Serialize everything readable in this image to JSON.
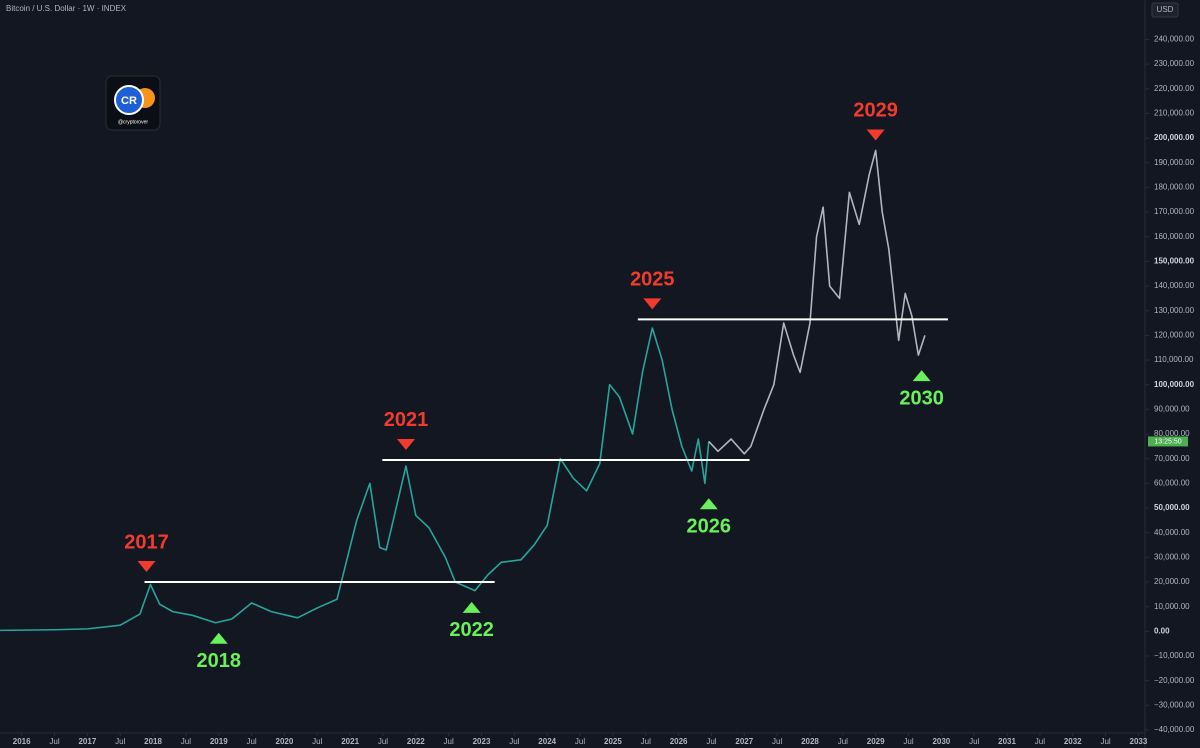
{
  "header": {
    "symbol": "Bitcoin / U.S. Dollar · 1W · INDEX",
    "currency": "USD"
  },
  "logo": {
    "mark": "CR",
    "handle": "@cryptorover"
  },
  "chart_data": {
    "type": "line",
    "xlim": [
      2015.67,
      2033.1
    ],
    "ylim": [
      -40000,
      256000
    ],
    "xticks": [
      {
        "value": 2016,
        "label": "2016"
      },
      {
        "value": 2016.5,
        "label": "Jul"
      },
      {
        "value": 2017,
        "label": "2017"
      },
      {
        "value": 2017.5,
        "label": "Jul"
      },
      {
        "value": 2018,
        "label": "2018"
      },
      {
        "value": 2018.5,
        "label": "Jul"
      },
      {
        "value": 2019,
        "label": "2019"
      },
      {
        "value": 2019.5,
        "label": "Jul"
      },
      {
        "value": 2020,
        "label": "2020"
      },
      {
        "value": 2020.5,
        "label": "Jul"
      },
      {
        "value": 2021,
        "label": "2021"
      },
      {
        "value": 2021.5,
        "label": "Jul"
      },
      {
        "value": 2022,
        "label": "2022"
      },
      {
        "value": 2022.5,
        "label": "Jul"
      },
      {
        "value": 2023,
        "label": "2023"
      },
      {
        "value": 2023.5,
        "label": "Jul"
      },
      {
        "value": 2024,
        "label": "2024"
      },
      {
        "value": 2024.5,
        "label": "Jul"
      },
      {
        "value": 2025,
        "label": "2025"
      },
      {
        "value": 2025.5,
        "label": "Jul"
      },
      {
        "value": 2026,
        "label": "2026"
      },
      {
        "value": 2026.5,
        "label": "Jul"
      },
      {
        "value": 2027,
        "label": "2027"
      },
      {
        "value": 2027.5,
        "label": "Jul"
      },
      {
        "value": 2028,
        "label": "2028"
      },
      {
        "value": 2028.5,
        "label": "Jul"
      },
      {
        "value": 2029,
        "label": "2029"
      },
      {
        "value": 2029.5,
        "label": "Jul"
      },
      {
        "value": 2030,
        "label": "2030"
      },
      {
        "value": 2030.5,
        "label": "Jul"
      },
      {
        "value": 2031,
        "label": "2031"
      },
      {
        "value": 2031.5,
        "label": "Jul"
      },
      {
        "value": 2032,
        "label": "2032"
      },
      {
        "value": 2032.5,
        "label": "Jul"
      },
      {
        "value": 2033,
        "label": "2033"
      }
    ],
    "yticks": [
      {
        "value": 240000,
        "label": "240,000.00"
      },
      {
        "value": 230000,
        "label": "230,000.00"
      },
      {
        "value": 220000,
        "label": "220,000.00"
      },
      {
        "value": 210000,
        "label": "210,000.00"
      },
      {
        "value": 200000,
        "label": "200,000.00"
      },
      {
        "value": 190000,
        "label": "190,000.00"
      },
      {
        "value": 180000,
        "label": "180,000.00"
      },
      {
        "value": 170000,
        "label": "170,000.00"
      },
      {
        "value": 160000,
        "label": "160,000.00"
      },
      {
        "value": 150000,
        "label": "150,000.00"
      },
      {
        "value": 140000,
        "label": "140,000.00"
      },
      {
        "value": 130000,
        "label": "130,000.00"
      },
      {
        "value": 120000,
        "label": "120,000.00"
      },
      {
        "value": 110000,
        "label": "110,000.00"
      },
      {
        "value": 100000,
        "label": "100,000.00"
      },
      {
        "value": 90000,
        "label": "90,000.00"
      },
      {
        "value": 80000,
        "label": "80,000.00"
      },
      {
        "value": 70000,
        "label": "70,000.00"
      },
      {
        "value": 60000,
        "label": "60,000.00"
      },
      {
        "value": 50000,
        "label": "50,000.00"
      },
      {
        "value": 40000,
        "label": "40,000.00"
      },
      {
        "value": 30000,
        "label": "30,000.00"
      },
      {
        "value": 20000,
        "label": "20,000.00"
      },
      {
        "value": 10000,
        "label": "10,000.00"
      },
      {
        "value": 0,
        "label": "0.00"
      },
      {
        "value": -10000,
        "label": "−10,000.00"
      },
      {
        "value": -20000,
        "label": "−20,000.00"
      },
      {
        "value": -30000,
        "label": "−30,000.00"
      },
      {
        "value": -40000,
        "label": "−40,000.00"
      }
    ],
    "series": [
      {
        "color": "#26a69a",
        "x": [
          2015.67,
          2016.5,
          2017.0,
          2017.5,
          2017.8,
          2017.96,
          2018.1,
          2018.3,
          2018.6,
          2018.95,
          2019.2,
          2019.5,
          2019.8,
          2020.2,
          2020.5,
          2020.8,
          2020.95,
          2021.1,
          2021.3,
          2021.45,
          2021.55,
          2021.85,
          2022.0,
          2022.2,
          2022.45,
          2022.6,
          2022.9,
          2023.1,
          2023.3,
          2023.6,
          2023.8,
          2024.0,
          2024.2,
          2024.4,
          2024.6,
          2024.8,
          2024.95,
          2025.1,
          2025.3,
          2025.45,
          2025.6,
          2025.75,
          2025.9,
          2026.05,
          2026.2,
          2026.3,
          2026.4,
          2026.46
        ],
        "values": [
          400,
          650,
          1000,
          2500,
          7000,
          19000,
          11000,
          8000,
          6500,
          3500,
          5000,
          11500,
          8000,
          5500,
          9500,
          13000,
          29000,
          45000,
          60000,
          34000,
          33000,
          67000,
          47000,
          42000,
          30000,
          20000,
          16500,
          23000,
          28000,
          29000,
          35000,
          43000,
          70000,
          62000,
          57000,
          68000,
          100000,
          95000,
          80000,
          105000,
          123000,
          110000,
          90000,
          75000,
          65000,
          78000,
          60000,
          77000
        ]
      },
      {
        "color": "#b2b5be",
        "x": [
          2026.46,
          2026.6,
          2026.8,
          2027.0,
          2027.1,
          2027.3,
          2027.45,
          2027.6,
          2027.75,
          2027.85,
          2028.0,
          2028.1,
          2028.2,
          2028.3,
          2028.45,
          2028.6,
          2028.75,
          2028.9,
          2029.0,
          2029.1,
          2029.2,
          2029.35,
          2029.45,
          2029.55,
          2029.65,
          2029.75
        ],
        "values": [
          77000,
          73000,
          78000,
          72000,
          75000,
          90000,
          100000,
          125000,
          112000,
          105000,
          125000,
          160000,
          172000,
          140000,
          135000,
          178000,
          165000,
          185000,
          195000,
          170000,
          155000,
          118000,
          137000,
          128000,
          112000,
          120000
        ]
      }
    ],
    "levels": [
      {
        "value": 20000,
        "x": [
          2017.87,
          2023.2
        ]
      },
      {
        "value": 69500,
        "x": [
          2021.49,
          2027.08
        ]
      },
      {
        "value": 126500,
        "x": [
          2025.38,
          2030.1
        ]
      }
    ],
    "annotations": [
      {
        "label": "2017",
        "kind": "top",
        "x": 2017.9,
        "y": 20000
      },
      {
        "label": "2021",
        "kind": "top",
        "x": 2021.85,
        "y": 69500
      },
      {
        "label": "2025",
        "kind": "top",
        "x": 2025.6,
        "y": 126500
      },
      {
        "label": "2029",
        "kind": "top",
        "x": 2029.0,
        "y": 195000
      },
      {
        "label": "2018",
        "kind": "bottom",
        "x": 2019.0,
        "y": 3500
      },
      {
        "label": "2022",
        "kind": "bottom",
        "x": 2022.85,
        "y": 16000
      },
      {
        "label": "2026",
        "kind": "bottom",
        "x": 2026.46,
        "y": 58000
      },
      {
        "label": "2030",
        "kind": "bottom",
        "x": 2029.7,
        "y": 110000
      }
    ],
    "countdown": "13:25:50"
  }
}
